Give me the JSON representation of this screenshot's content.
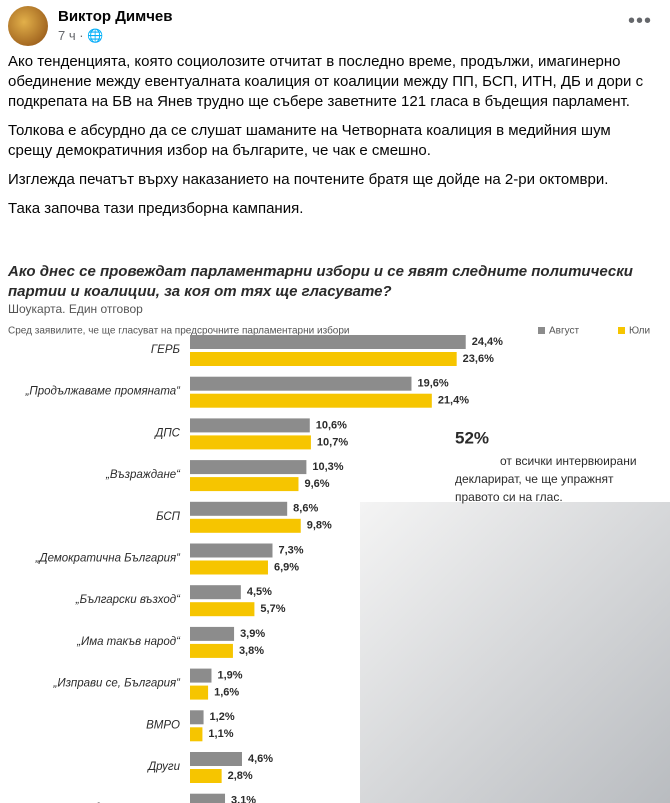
{
  "post": {
    "author": "Виктор Димчев",
    "time": "7 ч",
    "paragraphs": [
      "Ако тенденцията, която социолозите отчитат в последно време, продължи, имагинерно обединение между евентуалната коалиция от коалиции между ПП, БСП, ИТН, ДБ и дори с подкрепата на БВ на Янев трудно ще събере заветните 121 гласа в бъдещия парламент.",
      "Толкова е абсурдно да се слушат шаманите на Четворната коалиция в медийния шум срещу демократичния избор на българите, че чак е смешно.",
      "Изглежда печатът върху наказанието на почтените братя ще дойде на 2-ри октомври.",
      "Така започва тази предизборна кампания."
    ]
  },
  "chart_data": {
    "type": "bar",
    "orientation": "horizontal",
    "title": "Ако днес се провеждат парламентарни избори и се явят следните политически партии и коалиции, за коя от тях ще гласувате?",
    "subtitle": "Шоукарта. Един отговор",
    "note": "Сред заявилите, че ще гласуват на предсрочните парламентарни избори",
    "annotations": [
      "52%",
      "от всички интервюирани декларират, че ще упражнят правото си на глас."
    ],
    "categories": [
      "ГЕРБ",
      "„Продължаваме промяната“",
      "ДПС",
      "„Възраждане“",
      "БСП",
      "„Демократична България“",
      "„Български възход“",
      "„Има такъв народ“",
      "„Изправи се, България“",
      "ВМРО",
      "Други",
      "Не подкрепям никого"
    ],
    "series": [
      {
        "name": "Август",
        "color": "#8c8c8c",
        "values": [
          24.4,
          19.6,
          10.6,
          10.3,
          8.6,
          7.3,
          4.5,
          3.9,
          1.9,
          1.2,
          4.6,
          3.1
        ],
        "value_labels": [
          "24,4%",
          "19,6%",
          "10,6%",
          "10,3%",
          "8,6%",
          "7,3%",
          "4,5%",
          "3,9%",
          "1,9%",
          "1,2%",
          "4,6%",
          "3,1%"
        ]
      },
      {
        "name": "Юли",
        "color": "#f6c500",
        "values": [
          23.6,
          21.4,
          10.7,
          9.6,
          9.8,
          6.9,
          5.7,
          3.8,
          1.6,
          1.1,
          2.8,
          null
        ],
        "value_labels": [
          "23,6%",
          "21,4%",
          "10,7%",
          "9,6%",
          "9,8%",
          "6,9%",
          "5,7%",
          "3,8%",
          "1,6%",
          "1,1%",
          "2,8%",
          null
        ]
      }
    ]
  }
}
